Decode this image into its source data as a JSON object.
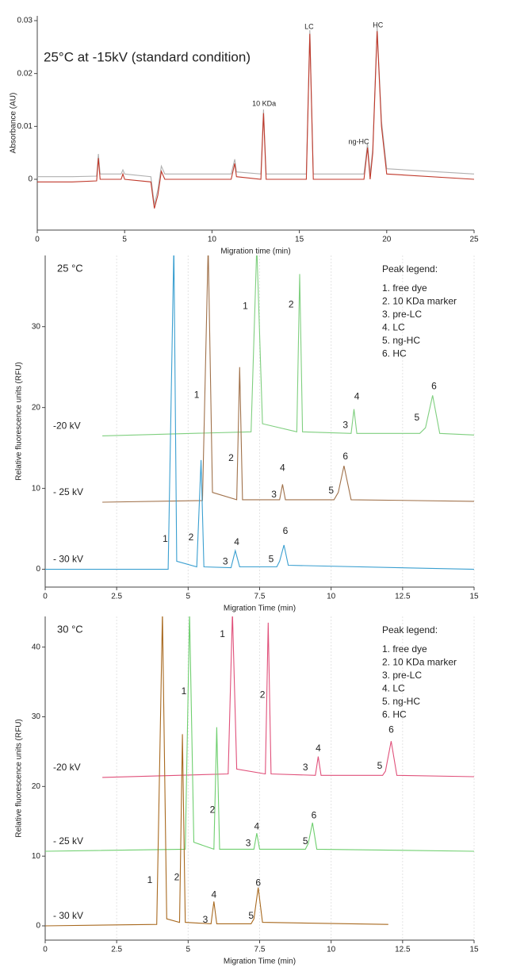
{
  "chart_data": [
    {
      "type": "line",
      "subtitle": "25°C at -15kV (standard condition)",
      "x_label": "Migration time (min)",
      "y_label": "Absorbance (AU)",
      "xlim": [
        0,
        25
      ],
      "xticks": [
        0,
        5,
        10,
        15,
        20,
        25
      ],
      "ylim": [
        -0.0096,
        0.0309
      ],
      "yticks": [
        0,
        0.01,
        0.02,
        0.03
      ],
      "grid": false,
      "series": [
        {
          "color": "#b0b0b0",
          "x": [
            0,
            2,
            3.4,
            3.5,
            3.6,
            4.8,
            4.9,
            5,
            6.5,
            6.7,
            6.9,
            7.1,
            7.3,
            11.1,
            11.3,
            11.4,
            12.8,
            12.95,
            13.1,
            15.4,
            15.6,
            15.8,
            18.7,
            18.9,
            19.05,
            19.2,
            19.45,
            19.7,
            20,
            25
          ],
          "y": [
            0.0005,
            0.0005,
            0.0006,
            0.0048,
            0.001,
            0.001,
            0.0018,
            0.001,
            0.0005,
            -0.0048,
            -0.002,
            0.0025,
            0.001,
            0.001,
            0.0038,
            0.0014,
            0.001,
            0.0132,
            0.001,
            0.001,
            0.0282,
            0.001,
            0.001,
            0.0068,
            0.001,
            0.0058,
            0.0288,
            0.011,
            0.002,
            0.001
          ]
        },
        {
          "color": "#c0392b",
          "x": [
            0,
            2,
            3.4,
            3.5,
            3.6,
            4.8,
            4.9,
            5,
            6.5,
            6.7,
            6.9,
            7.1,
            7.3,
            11.1,
            11.3,
            11.4,
            12.8,
            12.95,
            13.1,
            15.4,
            15.6,
            15.8,
            18.7,
            18.9,
            19.05,
            19.2,
            19.45,
            19.7,
            20,
            25
          ],
          "y": [
            -0.0005,
            -0.0005,
            -0.0003,
            0.004,
            0,
            0,
            0.001,
            0,
            -0.0005,
            -0.0055,
            -0.003,
            0.0015,
            0,
            0,
            0.003,
            0.0005,
            0,
            0.0125,
            0,
            0,
            0.0275,
            0,
            0,
            0.006,
            0,
            0.005,
            0.028,
            0.01,
            0.001,
            0
          ]
        }
      ],
      "annotations": [
        {
          "text": "10 KDa",
          "x": 12.98,
          "y": 0.0142
        },
        {
          "text": "LC",
          "x": 15.56,
          "y": 0.0288
        },
        {
          "text": "ng-HC",
          "x": 18.4,
          "y": 0.007
        },
        {
          "text": "HC",
          "x": 19.5,
          "y": 0.0291
        }
      ]
    },
    {
      "type": "line",
      "title": "25 °C",
      "x_label": "Migration Time (min)",
      "y_label": "Relative fluorescence units (RFU)",
      "xlim": [
        0,
        15
      ],
      "xticks": [
        0,
        2.5,
        5,
        7.5,
        10,
        12.5,
        15
      ],
      "ylim": [
        -2.2,
        38.8
      ],
      "yticks": [
        0,
        10,
        20,
        30
      ],
      "grid": "x",
      "legend_title": "Peak legend:",
      "legend_items": [
        "1. free dye",
        "2. 10 KDa marker",
        "3. pre-LC",
        "4. LC",
        "5. ng-HC",
        "6. HC"
      ],
      "series": [
        {
          "name": "-20 kV",
          "color": "#7fcf7f",
          "x": [
            2,
            7.2,
            7.4,
            7.6,
            8.8,
            8.9,
            9.0,
            10.7,
            10.8,
            10.9,
            13.1,
            13.3,
            13.55,
            13.8,
            15
          ],
          "y": [
            16.5,
            17,
            40,
            18,
            17,
            36.5,
            17,
            16.8,
            19.8,
            16.8,
            16.8,
            17.5,
            21.5,
            16.8,
            16.6
          ]
        },
        {
          "name": "- 25 kV",
          "color": "#a0714a",
          "x": [
            2,
            5.5,
            5.7,
            5.85,
            6.7,
            6.8,
            6.9,
            8.2,
            8.3,
            8.4,
            10.1,
            10.25,
            10.45,
            10.7,
            15
          ],
          "y": [
            8.3,
            8.5,
            40,
            9.5,
            8.6,
            25,
            8.6,
            8.6,
            10.5,
            8.6,
            8.6,
            9.5,
            12.8,
            8.6,
            8.4
          ]
        },
        {
          "name": "- 30 kV",
          "color": "#3a9fd0",
          "x": [
            0,
            4.3,
            4.5,
            4.6,
            5.3,
            5.45,
            5.55,
            6.5,
            6.65,
            6.8,
            8.1,
            8.2,
            8.35,
            8.5,
            15
          ],
          "y": [
            0,
            0,
            40,
            1,
            0.3,
            13.5,
            0.3,
            0.2,
            2.3,
            0.3,
            0.3,
            1,
            3,
            0.5,
            0
          ]
        }
      ],
      "annotations": [
        {
          "text": "1",
          "x": 4.2,
          "y": 3.7
        },
        {
          "text": "2",
          "x": 5.1,
          "y": 3.9
        },
        {
          "text": "3",
          "x": 6.3,
          "y": 0.9
        },
        {
          "text": "4",
          "x": 6.7,
          "y": 3.3
        },
        {
          "text": "5",
          "x": 7.9,
          "y": 1.2
        },
        {
          "text": "6",
          "x": 8.4,
          "y": 4.7
        },
        {
          "text": "1",
          "x": 5.3,
          "y": 21.5
        },
        {
          "text": "2",
          "x": 6.5,
          "y": 13.7
        },
        {
          "text": "3",
          "x": 8.0,
          "y": 9.2
        },
        {
          "text": "4",
          "x": 8.3,
          "y": 12.5
        },
        {
          "text": "5",
          "x": 10.0,
          "y": 9.7
        },
        {
          "text": "6",
          "x": 10.5,
          "y": 13.9
        },
        {
          "text": "1",
          "x": 7.0,
          "y": 32.5
        },
        {
          "text": "2",
          "x": 8.6,
          "y": 32.7
        },
        {
          "text": "3",
          "x": 10.5,
          "y": 17.8
        },
        {
          "text": "4",
          "x": 10.9,
          "y": 21.3
        },
        {
          "text": "5",
          "x": 13.0,
          "y": 18.7
        },
        {
          "text": "6",
          "x": 13.6,
          "y": 22.6
        }
      ]
    },
    {
      "type": "line",
      "title": "30 °C",
      "x_label": "Migration Time (min)",
      "y_label": "Relative fluorescence units (RFU)",
      "xlim": [
        0,
        15
      ],
      "xticks": [
        0,
        2.5,
        5,
        7.5,
        10,
        12.5,
        15
      ],
      "ylim": [
        -2.05,
        44.4
      ],
      "yticks": [
        0,
        10,
        20,
        30,
        40
      ],
      "grid": "x",
      "legend_title": "Peak legend:",
      "legend_items": [
        "1. free dye",
        "2. 10 KDa marker",
        "3. pre-LC",
        "4. LC",
        "5. ng-HC",
        "6. HC"
      ],
      "series": [
        {
          "name": "-20 kV",
          "color": "#e0507a",
          "x": [
            2,
            6.4,
            6.55,
            6.7,
            7.7,
            7.8,
            7.9,
            9.45,
            9.55,
            9.65,
            11.8,
            11.9,
            12.1,
            12.3,
            15
          ],
          "y": [
            21.3,
            21.8,
            45,
            22.5,
            21.8,
            43.5,
            21.8,
            21.6,
            24.3,
            21.6,
            21.6,
            22.2,
            26.5,
            21.6,
            21.4
          ]
        },
        {
          "name": "- 25 kV",
          "color": "#6fcf6f",
          "x": [
            0,
            4.9,
            5.05,
            5.2,
            5.9,
            6.0,
            6.1,
            7.3,
            7.4,
            7.5,
            9.1,
            9.2,
            9.35,
            9.5,
            15
          ],
          "y": [
            10.7,
            11,
            45,
            12,
            11,
            28.5,
            11,
            11,
            13.3,
            11,
            11,
            11.8,
            14.8,
            11,
            10.7
          ]
        },
        {
          "name": "- 30 kV",
          "color": "#a8691f",
          "x": [
            0,
            3.9,
            4.1,
            4.25,
            4.7,
            4.8,
            4.9,
            5.8,
            5.9,
            6.0,
            7.2,
            7.3,
            7.45,
            7.6,
            12
          ],
          "y": [
            0,
            0.2,
            45,
            1,
            0.5,
            27.5,
            0.5,
            0.3,
            3.5,
            0.3,
            0.3,
            1,
            5.5,
            0.5,
            0.2
          ]
        }
      ],
      "annotations": [
        {
          "text": "1",
          "x": 3.66,
          "y": 6.5
        },
        {
          "text": "2",
          "x": 4.6,
          "y": 6.9
        },
        {
          "text": "3",
          "x": 5.6,
          "y": 0.8
        },
        {
          "text": "4",
          "x": 5.9,
          "y": 4.4
        },
        {
          "text": "5",
          "x": 7.2,
          "y": 1.4
        },
        {
          "text": "6",
          "x": 7.45,
          "y": 6.1
        },
        {
          "text": "1",
          "x": 4.85,
          "y": 33.6
        },
        {
          "text": "2",
          "x": 5.85,
          "y": 16.6
        },
        {
          "text": "3",
          "x": 7.1,
          "y": 11.8
        },
        {
          "text": "4",
          "x": 7.4,
          "y": 14.2
        },
        {
          "text": "5",
          "x": 9.1,
          "y": 12.1
        },
        {
          "text": "6",
          "x": 9.4,
          "y": 15.8
        },
        {
          "text": "1",
          "x": 6.2,
          "y": 41.8
        },
        {
          "text": "2",
          "x": 7.6,
          "y": 33.1
        },
        {
          "text": "3",
          "x": 9.1,
          "y": 22.7
        },
        {
          "text": "4",
          "x": 9.55,
          "y": 25.4
        },
        {
          "text": "5",
          "x": 11.7,
          "y": 22.9
        },
        {
          "text": "6",
          "x": 12.1,
          "y": 28.1
        }
      ]
    }
  ]
}
